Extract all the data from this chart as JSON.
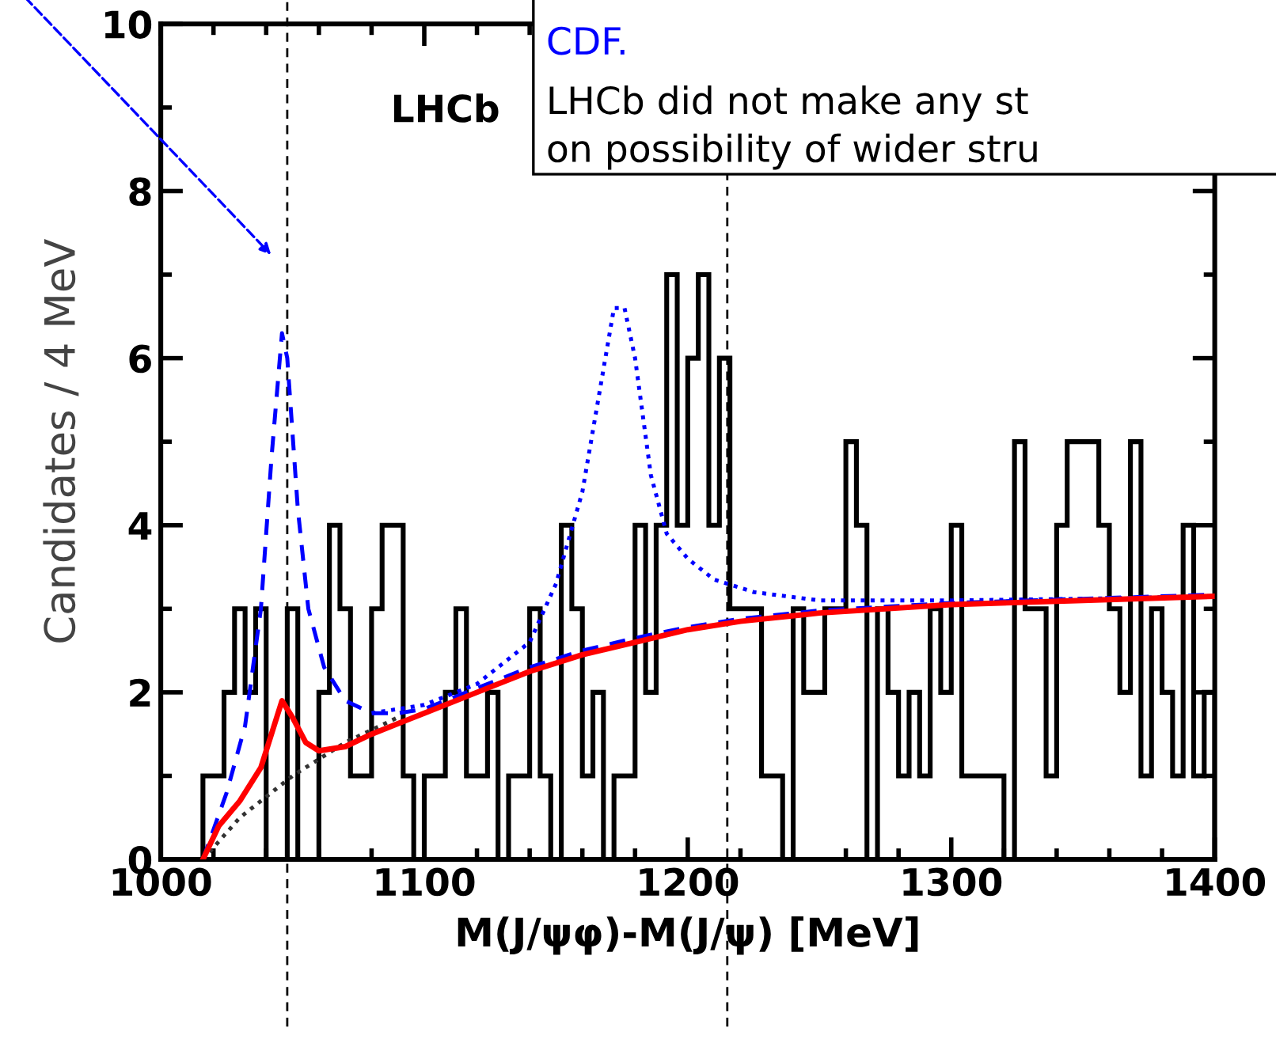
{
  "chart_data": {
    "type": "histogram",
    "xlabel": "M(J/ψφ)-M(J/ψ) [MeV]",
    "ylabel": "Candidates / 4 MeV",
    "annotations": [
      "LHCb",
      "CDF.",
      "LHCb did not make any st",
      "on possibility of wider stru"
    ],
    "xlim": [
      1000,
      1400
    ],
    "ylim": [
      0,
      10
    ],
    "xticks": [
      {
        "value": 1020,
        "label": null
      },
      {
        "value": 1040,
        "label": null
      },
      {
        "value": 1060,
        "label": null
      },
      {
        "value": 1080,
        "label": null
      },
      1100,
      {
        "value": 1120,
        "label": null
      },
      {
        "value": 1140,
        "label": null
      },
      {
        "value": 1160,
        "label": null
      },
      {
        "value": 1180,
        "label": null
      },
      1200,
      {
        "value": 1220,
        "label": null
      },
      {
        "value": 1240,
        "label": null
      },
      {
        "value": 1260,
        "label": null
      },
      {
        "value": 1280,
        "label": null
      },
      1300,
      {
        "value": 1320,
        "label": null
      },
      {
        "value": 1340,
        "label": null
      },
      {
        "value": 1360,
        "label": null
      },
      {
        "value": 1380,
        "label": null
      },
      1400,
      1000
    ],
    "yticks": [
      0,
      {
        "value": 1,
        "label": null
      },
      2,
      {
        "value": 3,
        "label": null
      },
      4,
      {
        "value": 5,
        "label": null
      },
      6,
      {
        "value": 7,
        "label": null
      },
      8,
      {
        "value": 9,
        "label": null
      },
      10
    ],
    "grid": false,
    "legend": false,
    "ref_lines": [
      {
        "axis": "x",
        "value": 1048,
        "color": "#000000",
        "line_style": "dashed"
      },
      {
        "axis": "x",
        "value": 1215,
        "color": "#000000",
        "line_style": "dashed"
      }
    ],
    "series": [
      {
        "color": "#000000",
        "bins": [
          1016,
          1020,
          1024,
          1028,
          1032,
          1036,
          1040,
          1044,
          1048,
          1052,
          1056,
          1060,
          1064,
          1068,
          1072,
          1076,
          1080,
          1084,
          1088,
          1092,
          1096,
          1100,
          1104,
          1108,
          1112,
          1116,
          1120,
          1124,
          1128,
          1132,
          1136,
          1140,
          1144,
          1148,
          1152,
          1156,
          1160,
          1164,
          1168,
          1172,
          1176,
          1180,
          1184,
          1188,
          1192,
          1196,
          1200,
          1204,
          1208,
          1212,
          1216,
          1220,
          1224,
          1228,
          1232,
          1236,
          1240,
          1244,
          1248,
          1252,
          1256,
          1260,
          1264,
          1268,
          1272,
          1276,
          1280,
          1284,
          1288,
          1292,
          1296,
          1300,
          1304,
          1308,
          1312,
          1316,
          1320,
          1324,
          1328,
          1332,
          1336,
          1340,
          1344,
          1348,
          1352,
          1356,
          1360,
          1364,
          1368,
          1372,
          1376,
          1380,
          1384,
          1388,
          1392,
          1396,
          1400
        ],
        "values": [
          1,
          1,
          2,
          3,
          2,
          3,
          0,
          0,
          3,
          0,
          0,
          2,
          4,
          3,
          1,
          1,
          3,
          4,
          4,
          1,
          0,
          1,
          1,
          2,
          3,
          1,
          1,
          2,
          0,
          1,
          1,
          3,
          1,
          0,
          4,
          3,
          1,
          2,
          0,
          1,
          1,
          4,
          2,
          4,
          7,
          4,
          6,
          7,
          4,
          6,
          3,
          3,
          3,
          1,
          1,
          0,
          3,
          2,
          2,
          3,
          3,
          5,
          4,
          0,
          3,
          2,
          1,
          2,
          1,
          3,
          2,
          4,
          1,
          1,
          1,
          1,
          null,
          5,
          3,
          3,
          1,
          4,
          5,
          5,
          5,
          4,
          3,
          2,
          5,
          1,
          3,
          2,
          1,
          4,
          1,
          2
        ]
      },
      {
        "type": "line",
        "color": "#0000ff",
        "line_style": "dotted",
        "x": [
          1080,
          1100,
          1120,
          1140,
          1150,
          1160,
          1166,
          1172,
          1176,
          1180,
          1186,
          1192,
          1200,
          1210,
          1225,
          1250,
          1300,
          1350,
          1400
        ],
        "values": [
          1.75,
          1.85,
          2.1,
          2.6,
          3.3,
          4.4,
          5.5,
          6.6,
          6.6,
          6.0,
          4.6,
          3.9,
          3.6,
          3.35,
          3.2,
          3.1,
          3.1,
          3.12,
          3.15
        ]
      },
      {
        "type": "line",
        "color": "#0000ff",
        "line_style": "dashed",
        "x": [
          1016,
          1025,
          1032,
          1038,
          1042,
          1046,
          1048,
          1052,
          1056,
          1062,
          1070,
          1080,
          1090,
          1100,
          1120,
          1140,
          1160,
          1180,
          1200,
          1220,
          1250,
          1300,
          1350,
          1400
        ],
        "values": [
          0,
          0.8,
          1.6,
          3.0,
          4.8,
          6.3,
          6.0,
          4.2,
          3.0,
          2.3,
          1.9,
          1.75,
          1.75,
          1.8,
          2.05,
          2.3,
          2.5,
          2.65,
          2.78,
          2.88,
          2.98,
          3.07,
          3.12,
          3.17
        ]
      },
      {
        "type": "line",
        "color": "#333333",
        "line_style": "dotted",
        "x": [
          1016,
          1030,
          1050,
          1070,
          1090
        ],
        "values": [
          0,
          0.5,
          1.0,
          1.4,
          1.7
        ]
      },
      {
        "type": "line",
        "color": "#ff0000",
        "line_style": "solid",
        "x": [
          1016,
          1022,
          1030,
          1038,
          1042,
          1046,
          1050,
          1055,
          1060,
          1070,
          1080,
          1100,
          1120,
          1140,
          1160,
          1180,
          1200,
          1220,
          1250,
          1300,
          1350,
          1400
        ],
        "values": [
          0,
          0.4,
          0.7,
          1.1,
          1.5,
          1.9,
          1.7,
          1.4,
          1.3,
          1.35,
          1.5,
          1.75,
          2.0,
          2.25,
          2.45,
          2.6,
          2.75,
          2.85,
          2.95,
          3.05,
          3.1,
          3.15
        ]
      }
    ]
  }
}
